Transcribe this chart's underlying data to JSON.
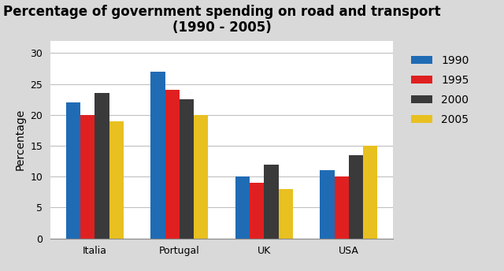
{
  "title": "Percentage of government spending on road and transport\n(1990 - 2005)",
  "ylabel": "Percentage",
  "categories": [
    "Italia",
    "Portugal",
    "UK",
    "USA"
  ],
  "years": [
    "1990",
    "1995",
    "2000",
    "2005"
  ],
  "values": {
    "1990": [
      22,
      27,
      10,
      11
    ],
    "1995": [
      20,
      24,
      9,
      10
    ],
    "2000": [
      23.5,
      22.5,
      12,
      13.5
    ],
    "2005": [
      19,
      20,
      8,
      15
    ]
  },
  "colors": {
    "1990": "#1f6cb5",
    "1995": "#e02020",
    "2000": "#3a3a3a",
    "2005": "#e8c020"
  },
  "ylim": [
    0,
    32
  ],
  "yticks": [
    0,
    5,
    10,
    15,
    20,
    25,
    30
  ],
  "background_color": "#d9d9d9",
  "plot_bg_color": "#ffffff",
  "bar_width": 0.17,
  "title_fontsize": 12,
  "axis_label_fontsize": 10,
  "tick_fontsize": 9,
  "legend_fontsize": 10
}
